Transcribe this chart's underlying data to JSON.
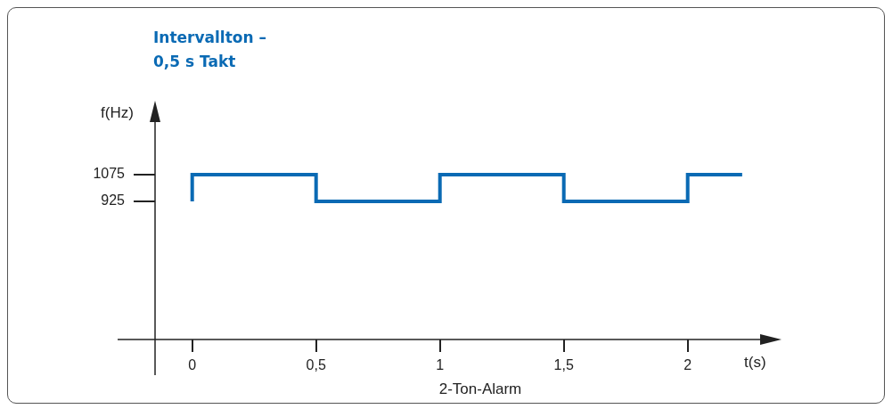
{
  "chart_data": {
    "type": "step",
    "title": "Intervallton – 0,5 s Takt",
    "xlabel": "t(s)",
    "ylabel": "f(Hz)",
    "annotations": [
      "2-Ton-Alarm"
    ],
    "x": [
      0,
      0,
      0.5,
      1,
      1.5,
      2,
      2.22
    ],
    "series": [
      {
        "color": "#0a6ab4",
        "values": [
          925,
          1075,
          925,
          1075,
          925,
          1075,
          1075
        ]
      }
    ],
    "xlim": [
      -0.15,
      2.35
    ],
    "xticks": [
      0,
      {
        "value": 0.5,
        "label": "0,5"
      },
      1,
      {
        "value": 1.5,
        "label": "1,5"
      },
      2
    ],
    "ylim": [
      150,
      1450
    ],
    "yticks": [
      925,
      1075
    ],
    "grid": false,
    "legend": false
  }
}
